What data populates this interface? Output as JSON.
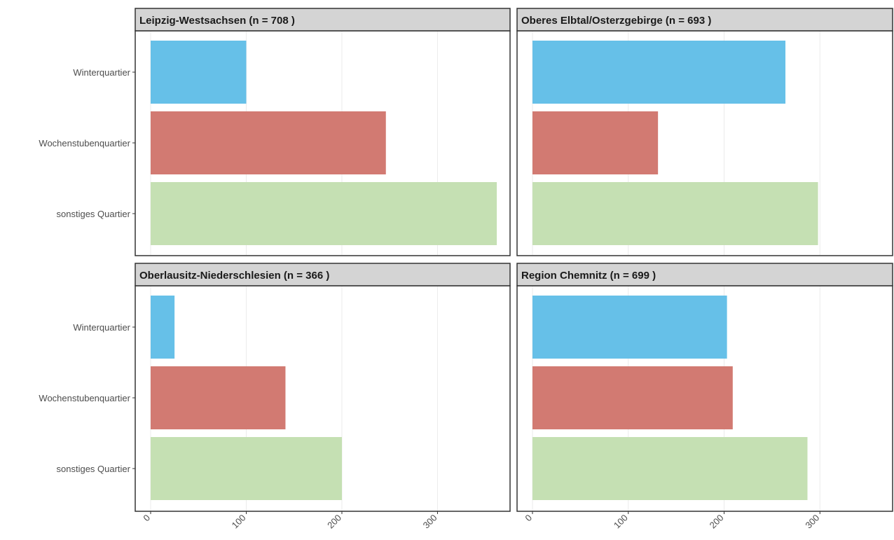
{
  "chart_data": {
    "type": "bar",
    "orientation": "horizontal",
    "layout": "facet-grid-2x2",
    "categories": [
      "Winterquartier",
      "Wochenstubenquartier",
      "sonstiges Quartier"
    ],
    "category_colors": [
      "#66c0e8",
      "#d27a72",
      "#c5e0b3"
    ],
    "xlim": [
      0,
      370
    ],
    "xticks": [
      "0",
      "100",
      "200",
      "300"
    ],
    "xtick_values": [
      0,
      100,
      200,
      300
    ],
    "grid": true,
    "legend": "none",
    "panels": [
      {
        "title": "Leipzig-Westsachsen  (n = 708 )",
        "values": [
          100,
          246,
          362
        ]
      },
      {
        "title": "Oberes Elbtal/Osterzgebirge  (n = 693 )",
        "values": [
          264,
          131,
          298
        ]
      },
      {
        "title": "Oberlausitz-Niederschlesien  (n = 366 )",
        "values": [
          25,
          141,
          200
        ]
      },
      {
        "title": "Region Chemnitz  (n = 699 )",
        "values": [
          203,
          209,
          287
        ]
      }
    ]
  },
  "colors": {
    "strip_bg": "#d4d4d4",
    "panel_border": "#333333",
    "grid": "#ebebeb",
    "text": "#4d4d4d"
  }
}
